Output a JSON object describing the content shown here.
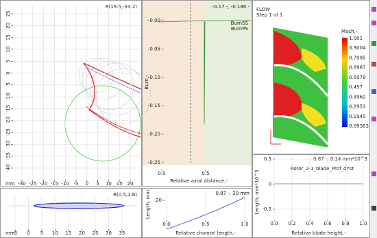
{
  "blade_view": {
    "readout": "R(19.5,-33.2)",
    "x_unit": "mm",
    "xticks": [
      -30,
      -25,
      -20,
      -15,
      -10,
      -5,
      0,
      5,
      10,
      15,
      20
    ],
    "yticks": [
      25,
      20,
      15,
      10,
      5,
      0,
      -5,
      -10,
      -15,
      -20,
      -25,
      -30,
      -35,
      -40
    ]
  },
  "section_view": {
    "readout": "R(0.5,1.6)",
    "x_unit": "mm",
    "xticks": [
      -5,
      0,
      5,
      10,
      15,
      20,
      25,
      30,
      35
    ]
  },
  "burn_plot": {
    "readout": "-0.17 -, -0.186 -",
    "ylabel": "Burn,-",
    "xlabel": "Relative axial distance,-",
    "legend": [
      "BurnSS",
      "BurnPS"
    ],
    "yticks": [
      {
        "value": 0,
        "label": "-0.00"
      },
      -0.05,
      {
        "value": -0.1,
        "label": "-0.10"
      },
      -0.15,
      {
        "value": -0.2,
        "label": "-0.20"
      },
      -0.25
    ],
    "xticks": [
      {
        "value": 0,
        "label": "0.0"
      },
      0.5
    ]
  },
  "channel_plot": {
    "readout": "0.87 -, 20 mm",
    "ylabel": "Length, mm",
    "xlabel": "Relative channel length,-",
    "yticks": [
      20
    ],
    "xticks": [
      {
        "value": 0,
        "label": "0.0"
      },
      0.5,
      {
        "value": 1,
        "label": "1.0"
      }
    ]
  },
  "flow_view": {
    "title": "FLOW",
    "step": "Step 1 of 1",
    "colorbar_title": "Mach,-",
    "colorbar_labels": [
      "1.001",
      "0.9004",
      "0.7995",
      "0.6987",
      "0.5978",
      "0.497",
      "0.3962",
      "0.2953",
      "0.1945",
      "0.09363"
    ]
  },
  "height_plot": {
    "readout": "0.87 -, 0.14 mm*10^3",
    "series_name": "Rotor_2-1_blade_Prof_dYst",
    "ylabel": "Length, mm*10^3",
    "xlabel": "Relative blade height,-",
    "yticks": [
      0.5,
      0,
      -0.5
    ],
    "xticks": [
      {
        "value": 0,
        "label": "0.0"
      },
      0.2,
      0.4,
      0.6,
      0.8,
      {
        "value": 1,
        "label": "1.0"
      }
    ]
  }
}
